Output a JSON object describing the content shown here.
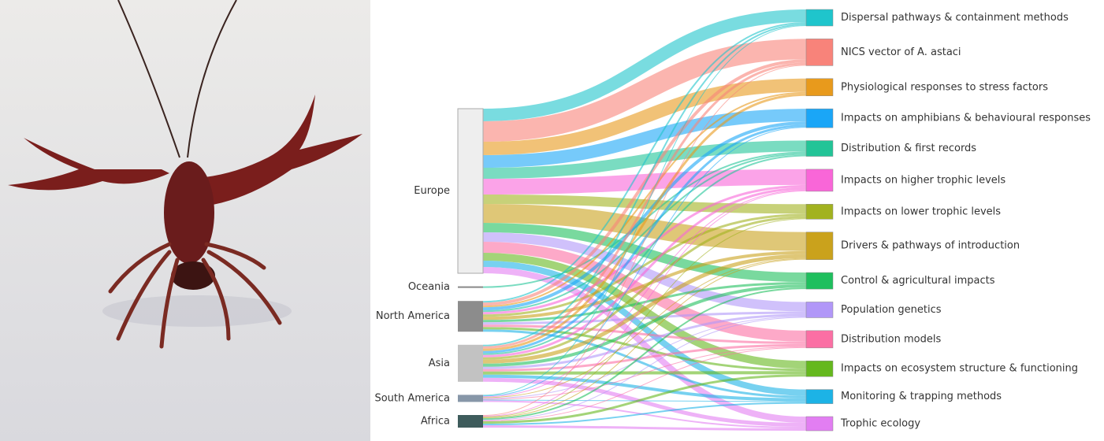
{
  "chart_data": {
    "type": "sankey",
    "sources": [
      {
        "name": "Europe",
        "color": "#eeeeee",
        "flows": [
          16,
          26,
          17,
          16,
          14,
          20,
          12,
          24,
          12,
          12,
          14,
          10,
          8,
          8
        ]
      },
      {
        "name": "Oceania",
        "color": "#888888",
        "flows": [
          0,
          0,
          0,
          0,
          2,
          0,
          0,
          0,
          0,
          0,
          0,
          0,
          0,
          0
        ]
      },
      {
        "name": "North America",
        "color": "#8c8c8c",
        "flows": [
          2,
          4,
          2,
          4,
          2,
          3,
          3,
          4,
          3,
          3,
          3,
          3,
          3,
          0
        ]
      },
      {
        "name": "Asia",
        "color": "#c2c2c2",
        "flows": [
          2,
          3,
          3,
          3,
          2,
          3,
          3,
          5,
          4,
          3,
          3,
          4,
          4,
          5
        ]
      },
      {
        "name": "South America",
        "color": "#8797a8",
        "flows": [
          1,
          0,
          0,
          1,
          0,
          1,
          0,
          1,
          0,
          1,
          1,
          0,
          1,
          2
        ]
      },
      {
        "name": "Africa",
        "color": "#3e5c5c",
        "flows": [
          0,
          1,
          0,
          0,
          0,
          1,
          1,
          1,
          2,
          1,
          1,
          3,
          2,
          3
        ]
      }
    ],
    "targets": [
      {
        "name": "Dispersal pathways & containment methods",
        "color": "#1fc5cc"
      },
      {
        "name": "NICS vector of A. astaci",
        "color": "#f8837a"
      },
      {
        "name": "Physiological responses to stress factors",
        "color": "#e89a1c"
      },
      {
        "name": "Impacts on amphibians & behavioural responses",
        "color": "#1aa6f7"
      },
      {
        "name": "Distribution & first records",
        "color": "#22c497"
      },
      {
        "name": "Impacts on higher trophic levels",
        "color": "#f966d8"
      },
      {
        "name": "Impacts on lower trophic levels",
        "color": "#a2b21f"
      },
      {
        "name": "Drivers & pathways of introduction",
        "color": "#caa21c"
      },
      {
        "name": "Control & agricultural impacts",
        "color": "#1fbf5e"
      },
      {
        "name": "Population genetics",
        "color": "#b197f8"
      },
      {
        "name": "Distribution models",
        "color": "#fb6fa4"
      },
      {
        "name": "Impacts on ecosystem structure & functioning",
        "color": "#65b81e"
      },
      {
        "name": "Monitoring & trapping methods",
        "color": "#1cb3e6"
      },
      {
        "name": "Trophic ecology",
        "color": "#e27ef2"
      }
    ]
  }
}
